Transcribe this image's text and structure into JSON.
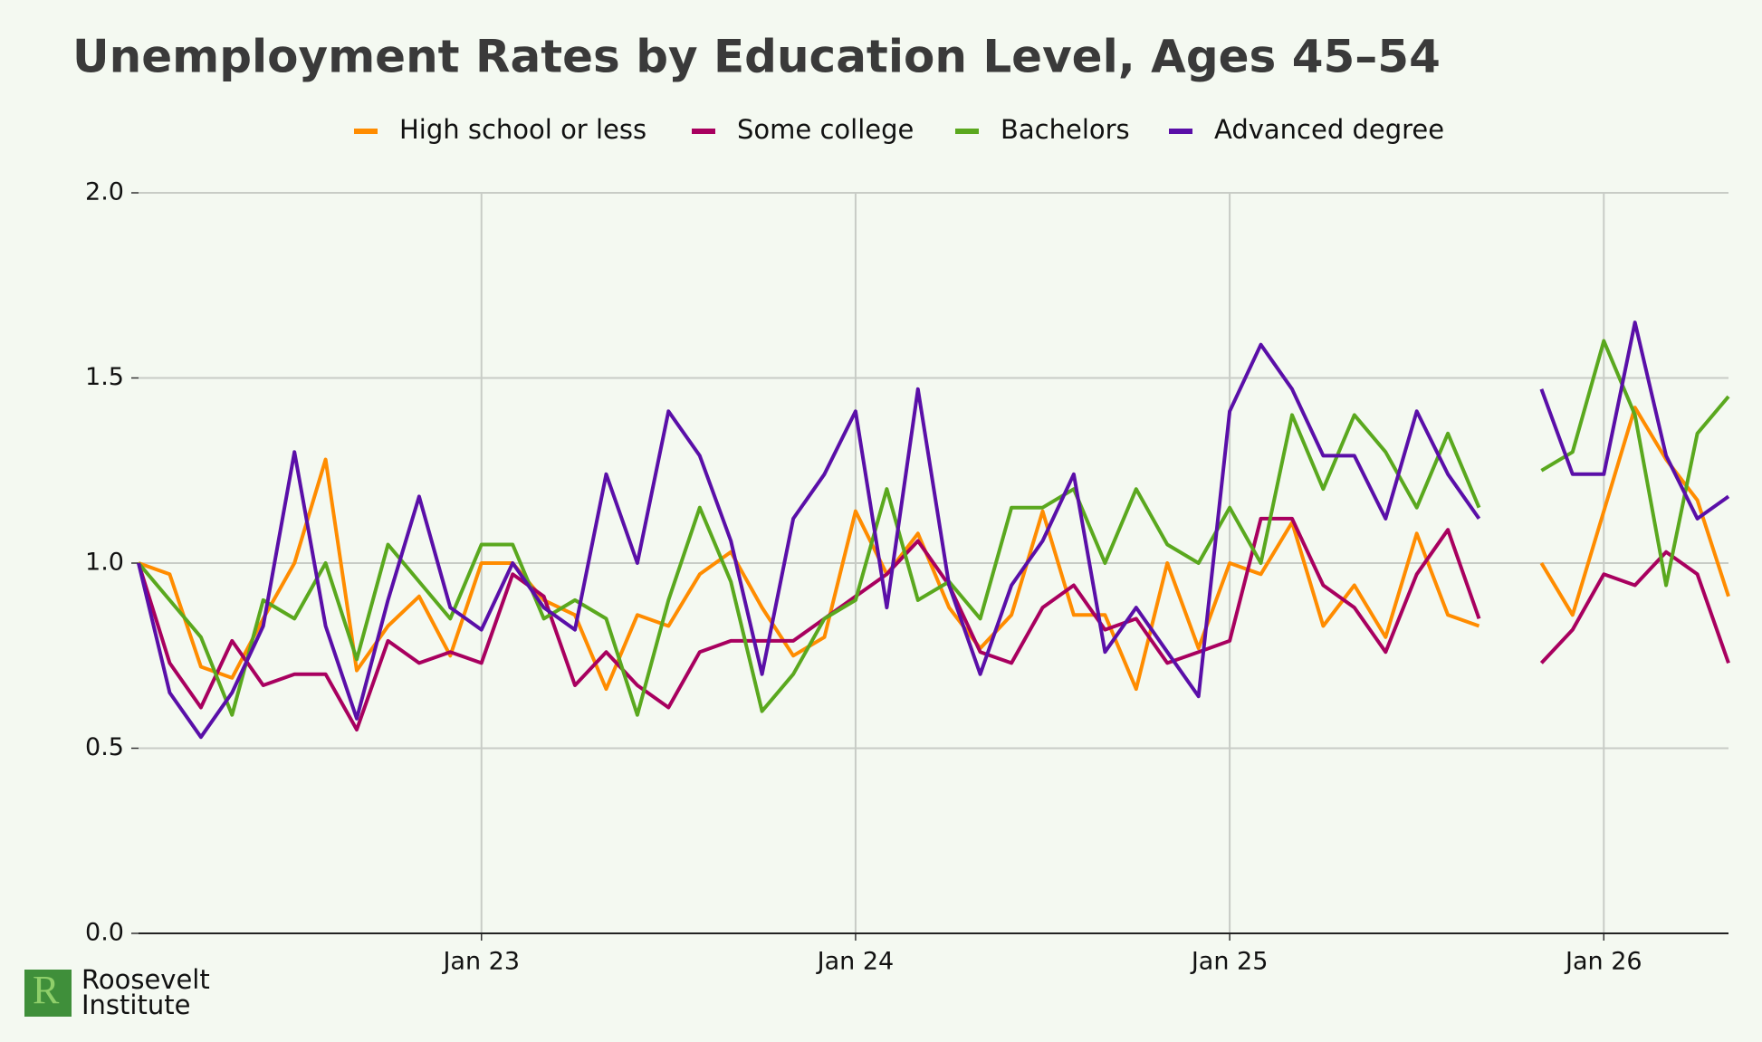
{
  "chart_data": {
    "type": "line",
    "title": "Unemployment Rates by Education Level, Ages 45–54",
    "x": [
      "2022-02",
      "2022-03",
      "2022-04",
      "2022-05",
      "2022-06",
      "2022-07",
      "2022-08",
      "2022-09",
      "2022-10",
      "2022-11",
      "2022-12",
      "2023-01",
      "2023-02",
      "2023-03",
      "2023-04",
      "2023-05",
      "2023-06",
      "2023-07",
      "2023-08",
      "2023-09",
      "2023-10",
      "2023-11",
      "2023-12",
      "2024-01",
      "2024-02",
      "2024-03",
      "2024-04",
      "2024-05",
      "2024-06",
      "2024-07",
      "2024-08",
      "2024-09",
      "2024-10",
      "2024-11",
      "2024-12",
      "2025-01",
      "2025-02",
      "2025-03",
      "2025-04",
      "2025-05",
      "2025-06",
      "2025-07",
      "2025-08",
      "2025-09",
      "2025-10",
      "2025-11",
      "2025-12",
      "2026-01",
      "2026-02",
      "2026-03",
      "2026-04",
      "2026-05"
    ],
    "series": [
      {
        "name": "High school or less",
        "color": "#ff8c00",
        "values": [
          1.0,
          0.97,
          0.72,
          0.69,
          0.85,
          1.0,
          1.28,
          0.71,
          0.83,
          0.91,
          0.75,
          1.0,
          1.0,
          0.9,
          0.86,
          0.66,
          0.86,
          0.83,
          0.97,
          1.03,
          0.88,
          0.75,
          0.8,
          1.14,
          0.97,
          1.08,
          0.88,
          0.77,
          0.86,
          1.14,
          0.86,
          0.86,
          0.66,
          1.0,
          0.77,
          1.0,
          0.97,
          1.11,
          0.83,
          0.94,
          0.8,
          1.08,
          0.86,
          0.83,
          null,
          1.0,
          0.86,
          1.14,
          1.42,
          1.28,
          1.17,
          0.91
        ]
      },
      {
        "name": "Some college",
        "color": "#a8005f",
        "values": [
          1.0,
          0.73,
          0.61,
          0.79,
          0.67,
          0.7,
          0.7,
          0.55,
          0.79,
          0.73,
          0.76,
          0.73,
          0.97,
          0.91,
          0.67,
          0.76,
          0.67,
          0.61,
          0.76,
          0.79,
          0.79,
          0.79,
          0.85,
          0.91,
          0.97,
          1.06,
          0.94,
          0.76,
          0.73,
          0.88,
          0.94,
          0.82,
          0.85,
          0.73,
          0.76,
          0.79,
          1.12,
          1.12,
          0.94,
          0.88,
          0.76,
          0.97,
          1.09,
          0.85,
          null,
          0.73,
          0.82,
          0.97,
          0.94,
          1.03,
          0.97,
          0.73
        ]
      },
      {
        "name": "Bachelors",
        "color": "#5aa81e",
        "values": [
          1.0,
          0.9,
          0.8,
          0.59,
          0.9,
          0.85,
          1.0,
          0.74,
          1.05,
          0.95,
          0.85,
          1.05,
          1.05,
          0.85,
          0.9,
          0.85,
          0.59,
          0.9,
          1.15,
          0.95,
          0.6,
          0.7,
          0.85,
          0.9,
          1.2,
          0.9,
          0.95,
          0.85,
          1.15,
          1.15,
          1.2,
          1.0,
          1.2,
          1.05,
          1.0,
          1.15,
          1.0,
          1.4,
          1.2,
          1.4,
          1.3,
          1.15,
          1.35,
          1.15,
          null,
          1.25,
          1.3,
          1.6,
          1.4,
          0.94,
          1.35,
          1.45
        ]
      },
      {
        "name": "Advanced degree",
        "color": "#5a0fa8",
        "values": [
          1.0,
          0.65,
          0.53,
          0.65,
          0.83,
          1.3,
          0.83,
          0.58,
          0.9,
          1.18,
          0.88,
          0.82,
          1.0,
          0.88,
          0.82,
          1.24,
          1.0,
          1.41,
          1.29,
          1.06,
          0.7,
          1.12,
          1.24,
          1.41,
          0.88,
          1.47,
          0.94,
          0.7,
          0.94,
          1.06,
          1.24,
          0.76,
          0.88,
          0.76,
          0.64,
          1.41,
          1.59,
          1.47,
          1.29,
          1.29,
          1.12,
          1.41,
          1.24,
          1.12,
          null,
          1.47,
          1.24,
          1.24,
          1.65,
          1.29,
          1.12,
          1.18
        ]
      }
    ],
    "xlim": [
      "2022-02",
      "2026-05"
    ],
    "xticks": [
      {
        "value": "2023-01",
        "label": "Jan 23"
      },
      {
        "value": "2024-01",
        "label": "Jan 24"
      },
      {
        "value": "2025-01",
        "label": "Jan 25"
      },
      {
        "value": "2026-01",
        "label": "Jan 26"
      }
    ],
    "ylim": [
      0,
      2
    ],
    "yticks": [
      {
        "value": 0,
        "label": "0.0"
      },
      {
        "value": 0.5,
        "label": "0.5"
      },
      {
        "value": 1,
        "label": "1.0"
      },
      {
        "value": 1.5,
        "label": "1.5"
      },
      {
        "value": 2,
        "label": "2.0"
      }
    ],
    "grid": true,
    "legend": "top"
  },
  "logo": {
    "line1": "Roosevelt",
    "line2": "Institute"
  }
}
